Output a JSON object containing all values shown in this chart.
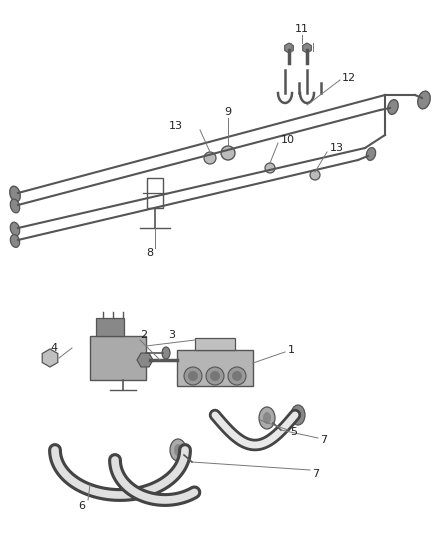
{
  "bg_color": "#ffffff",
  "fig_width": 4.38,
  "fig_height": 5.33,
  "dpi": 100,
  "part_color": "#555555",
  "leader_color": "#777777",
  "hose_outline": "#444444",
  "hose_fill": "#cccccc",
  "tube_color": "#666666",
  "fitting_color": "#888888",
  "shadow_color": "#999999"
}
